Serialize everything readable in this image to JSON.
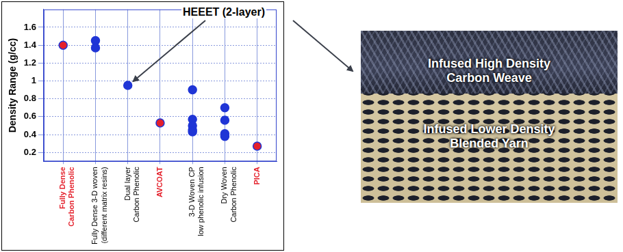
{
  "chart_data": {
    "type": "scatter",
    "y_label": "Density Range (g/cc)",
    "categories": [
      "Fully Dense\nCarbon Phenolic",
      "Fully Dense 3-D woven\n(different matrix resins)",
      "Dual layer\nCarbon Phenolic",
      "AVCOAT",
      "3-D Woven CP\nlow phenolic infusion",
      "Dry Woven\nCarbon Phenolic",
      "PICA"
    ],
    "values": [
      [
        1.4
      ],
      [
        1.45,
        1.37
      ],
      [
        0.95
      ],
      [
        0.53
      ],
      [
        0.9,
        0.57,
        0.5,
        0.45,
        0.43
      ],
      [
        0.7,
        0.56,
        0.41,
        0.38
      ],
      [
        0.27
      ]
    ],
    "colors": [
      "#e4202b",
      "#1f35d6",
      "#1f35d6",
      "#e4202b",
      "#1f35d6",
      "#1f35d6",
      "#e4202b"
    ],
    "ylim": [
      0.1,
      1.8
    ],
    "yticks": [
      0.2,
      0.4,
      0.6,
      0.8,
      1,
      1.2,
      1.4,
      1.6
    ],
    "grid": true,
    "annotation": "HEEET (2-layer)"
  },
  "photo": {
    "labels": [
      "Infused High Density\nCarbon Weave",
      "Infused Lower Density\nBlended Yarn"
    ]
  }
}
